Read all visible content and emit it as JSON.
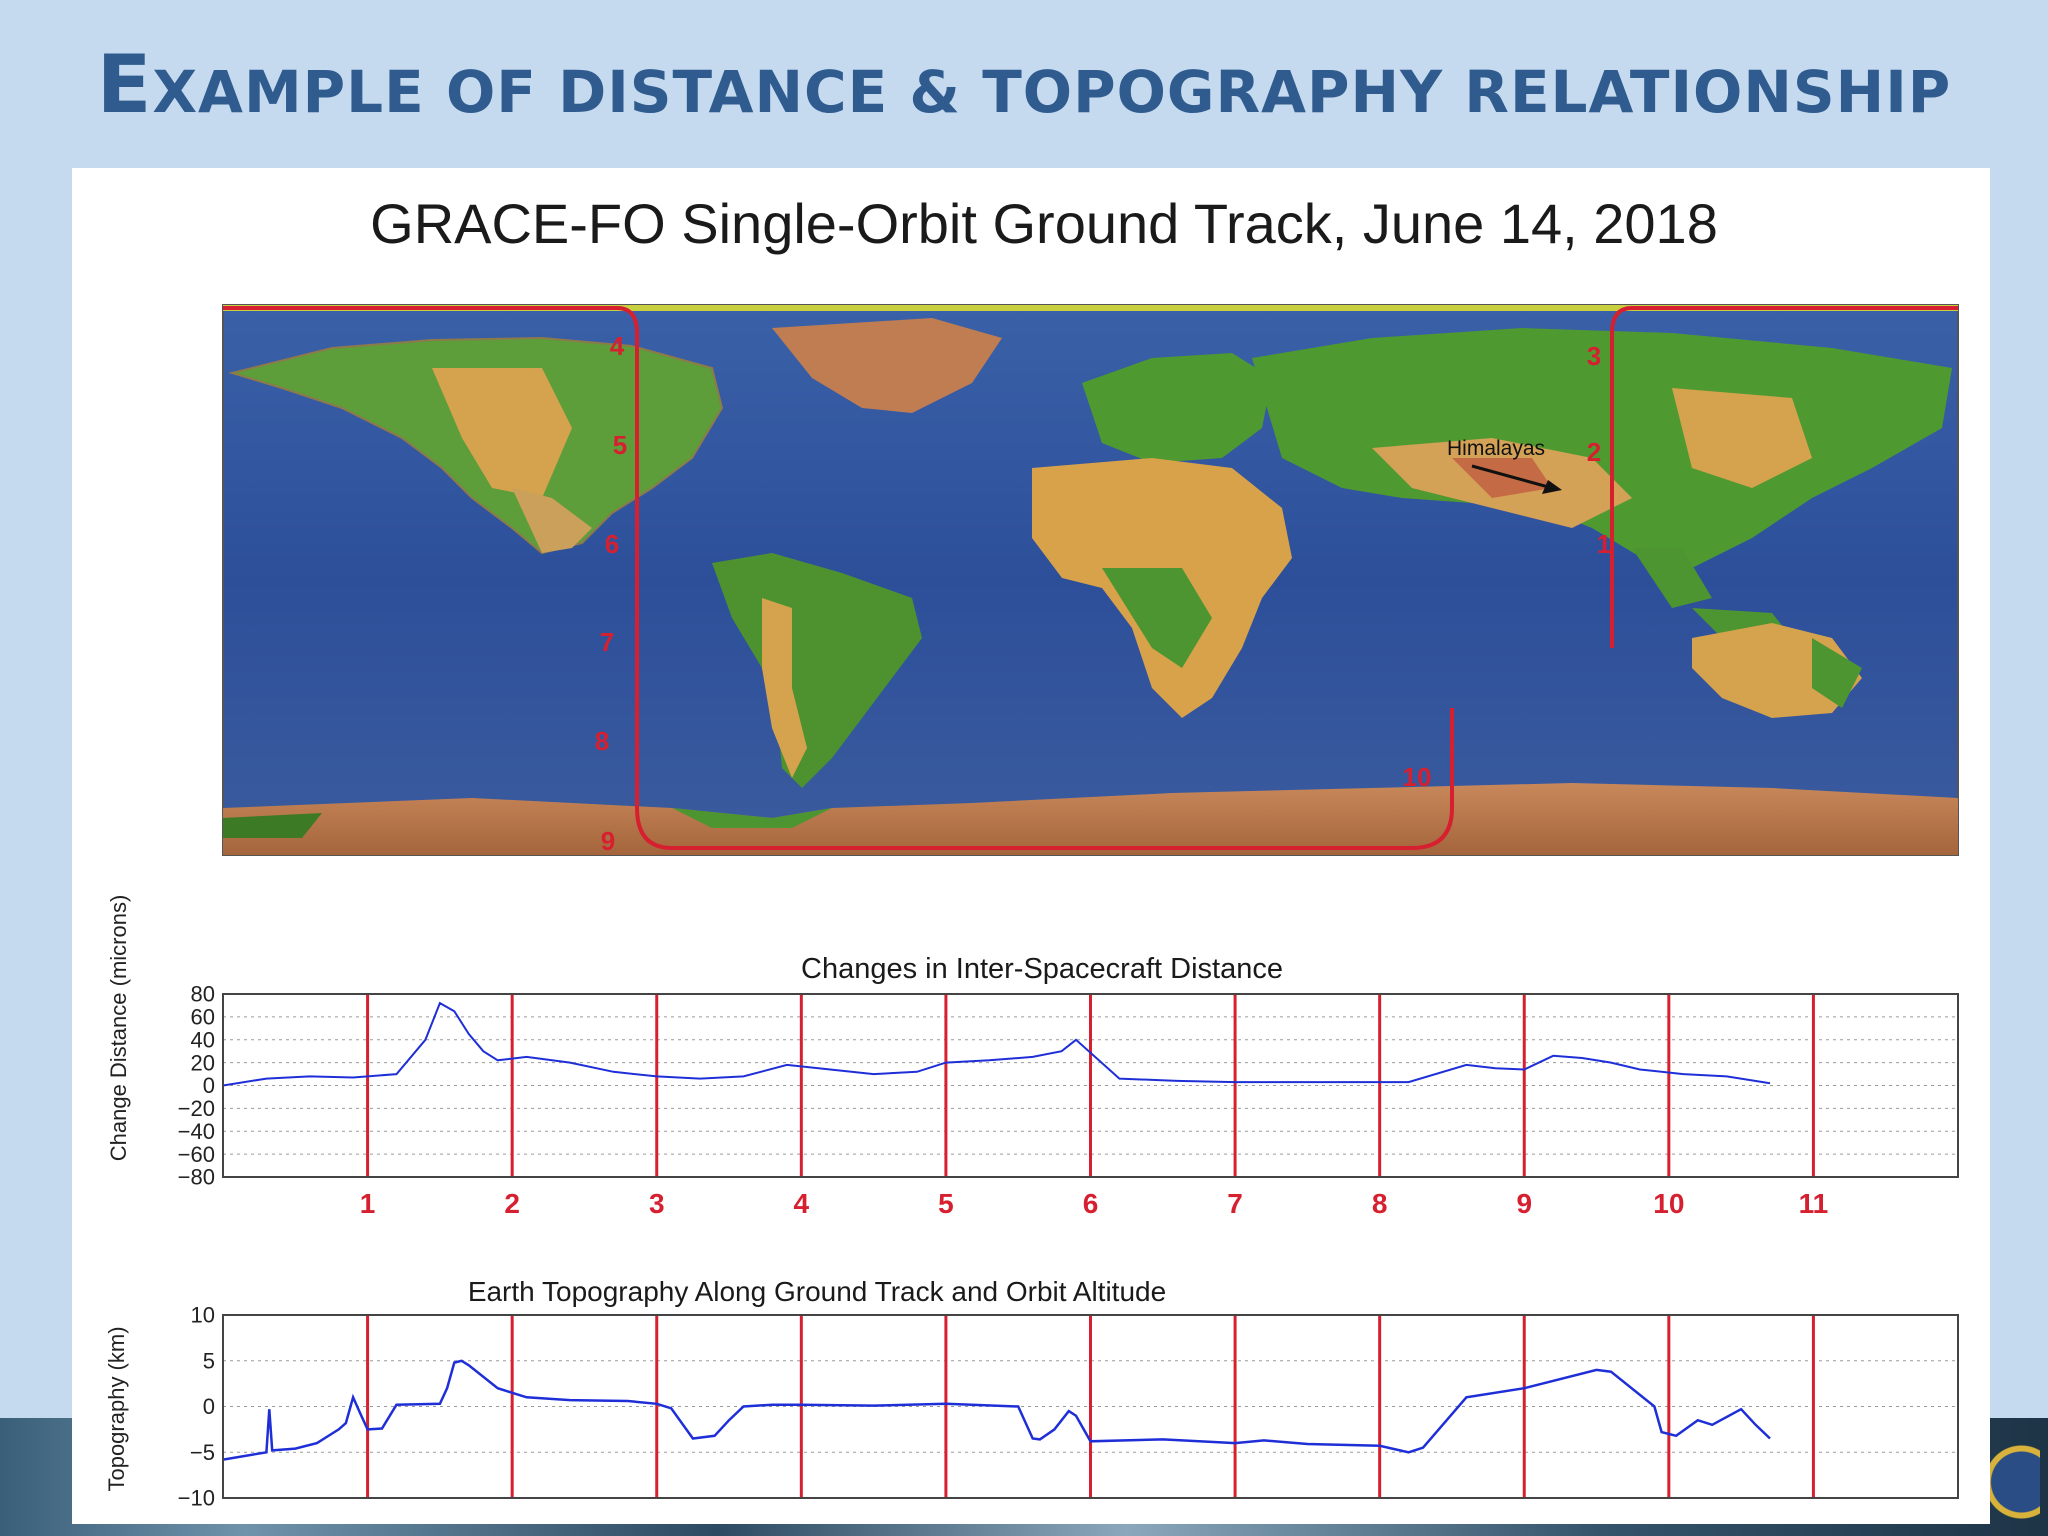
{
  "slide": {
    "title_first_letter": "E",
    "title_rest": "XAMPLE OF DISTANCE & TOPOGRAPHY RELATIONSHIP"
  },
  "colors": {
    "title": "#2f5b8e",
    "background": "#c5d9ef",
    "marker": "#d62030",
    "series": "#1f2fd8"
  },
  "map": {
    "title": "GRACE-FO Single-Orbit Ground Track, June 14, 2018",
    "annotation": "Himalayas",
    "track_points": [
      {
        "label": "1"
      },
      {
        "label": "2"
      },
      {
        "label": "3"
      },
      {
        "label": "4"
      },
      {
        "label": "5"
      },
      {
        "label": "6"
      },
      {
        "label": "7"
      },
      {
        "label": "8"
      },
      {
        "label": "9"
      },
      {
        "label": "10"
      }
    ]
  },
  "chart_data": [
    {
      "type": "line",
      "title": "Changes in Inter-Spacecraft Distance",
      "ylabel": "Change Distance (microns)",
      "xlabel": "",
      "ylim": [
        -80,
        80
      ],
      "yticks": [
        "80",
        "60",
        "40",
        "20",
        "0",
        "−20",
        "−40",
        "−60",
        "−80"
      ],
      "ytick_values": [
        80,
        60,
        40,
        20,
        0,
        -20,
        -40,
        -60,
        -80
      ],
      "xlim": [
        0,
        12
      ],
      "grid": "horizontal dotted",
      "markers": [
        "1",
        "2",
        "3",
        "4",
        "5",
        "6",
        "7",
        "8",
        "9",
        "10",
        "11"
      ],
      "marker_positions": [
        1,
        2,
        3,
        4,
        5,
        6,
        7,
        8,
        9,
        10,
        11
      ],
      "series": [
        {
          "x": [
            0,
            0.3,
            0.6,
            0.9,
            1.2,
            1.4,
            1.5,
            1.6,
            1.7,
            1.8,
            1.9,
            2.1,
            2.4,
            2.7,
            3.0,
            3.3,
            3.6,
            3.9,
            4.2,
            4.5,
            4.8,
            5.0,
            5.3,
            5.6,
            5.8,
            5.9,
            6.2,
            6.6,
            7.0,
            7.4,
            7.8,
            8.2,
            8.6,
            8.8,
            9.0,
            9.2,
            9.4,
            9.6,
            9.8,
            10.1,
            10.4,
            10.7
          ],
          "y": [
            0,
            6,
            8,
            7,
            10,
            40,
            72,
            65,
            45,
            30,
            22,
            25,
            20,
            12,
            8,
            6,
            8,
            18,
            14,
            10,
            12,
            20,
            22,
            25,
            30,
            40,
            6,
            4,
            3,
            3,
            3,
            3,
            18,
            15,
            14,
            26,
            24,
            20,
            14,
            10,
            8,
            2
          ]
        }
      ]
    },
    {
      "type": "line",
      "title": "Earth Topography Along Ground Track and Orbit Altitude",
      "ylabel": "Topography (km)",
      "xlabel": "",
      "ylim": [
        -10,
        10
      ],
      "yticks": [
        "10",
        "5",
        "0",
        "−5",
        "−10"
      ],
      "ytick_values": [
        10,
        5,
        0,
        -5,
        -10
      ],
      "xlim": [
        0,
        12
      ],
      "grid": "horizontal dotted",
      "marker_positions": [
        1,
        2,
        3,
        4,
        5,
        6,
        7,
        8,
        9,
        10,
        11
      ],
      "series": [
        {
          "x": [
            0,
            0.3,
            0.32,
            0.34,
            0.5,
            0.65,
            0.75,
            0.8,
            0.85,
            0.9,
            0.95,
            1.0,
            1.1,
            1.2,
            1.5,
            1.55,
            1.6,
            1.65,
            1.7,
            1.9,
            2.0,
            2.1,
            2.4,
            2.8,
            3.0,
            3.1,
            3.25,
            3.4,
            3.5,
            3.6,
            3.8,
            4.0,
            4.5,
            5.0,
            5.5,
            5.6,
            5.65,
            5.75,
            5.85,
            5.9,
            6.0,
            6.5,
            7.0,
            7.2,
            7.5,
            8.0,
            8.2,
            8.3,
            8.6,
            9.0,
            9.5,
            9.6,
            9.9,
            9.95,
            10.05,
            10.2,
            10.3,
            10.5,
            10.6,
            10.7
          ],
          "y": [
            -5.8,
            -5.0,
            -0.3,
            -4.8,
            -4.6,
            -4.0,
            -3.0,
            -2.5,
            -1.8,
            1.0,
            -0.8,
            -2.5,
            -2.4,
            0.2,
            0.3,
            2.0,
            4.8,
            5.0,
            4.5,
            2.0,
            1.5,
            1.0,
            0.7,
            0.6,
            0.3,
            -0.2,
            -3.5,
            -3.2,
            -1.5,
            0.0,
            0.2,
            0.2,
            0.1,
            0.3,
            0.0,
            -3.5,
            -3.6,
            -2.5,
            -0.5,
            -1.0,
            -3.8,
            -3.6,
            -4.0,
            -3.7,
            -4.1,
            -4.3,
            -5.0,
            -4.5,
            1.0,
            2.0,
            4.0,
            3.8,
            0.0,
            -2.8,
            -3.2,
            -1.5,
            -2.0,
            -0.3,
            -2.0,
            -3.5
          ]
        }
      ]
    }
  ]
}
